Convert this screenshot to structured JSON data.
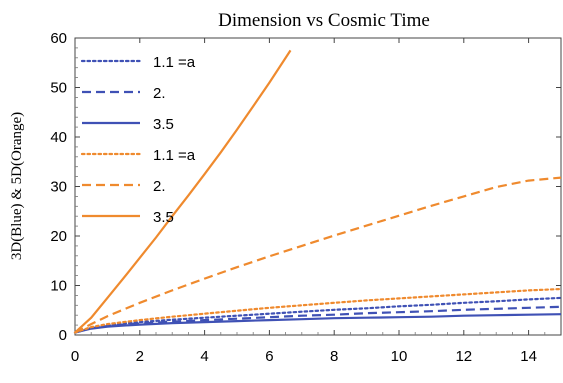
{
  "chart_data": {
    "type": "line",
    "title": "Dimension vs Cosmic Time",
    "xlabel": "",
    "ylabel": "3D(Blue) & 5D(Orange)",
    "xlim": [
      0,
      15
    ],
    "ylim": [
      0,
      60
    ],
    "xticks": [
      "0",
      "2",
      "4",
      "6",
      "8",
      "10",
      "12",
      "14"
    ],
    "yticks": [
      "0",
      "10",
      "20",
      "30",
      "40",
      "50",
      "60"
    ],
    "grid": false,
    "legend_position": "top-left",
    "colors": {
      "blue": "#3f51b5",
      "orange": "#ef8a2e"
    },
    "series": [
      {
        "name": "1.1 =a",
        "color": "blue",
        "dash": "dotted",
        "x": [
          0,
          0.5,
          1,
          2,
          3,
          4,
          5,
          6,
          7,
          8,
          9,
          10,
          11,
          12,
          13,
          14,
          15
        ],
        "y": [
          0.5,
          1.5,
          2.0,
          2.6,
          3.1,
          3.5,
          3.9,
          4.3,
          4.7,
          5.1,
          5.4,
          5.8,
          6.1,
          6.5,
          6.8,
          7.2,
          7.5
        ]
      },
      {
        "name": "2.",
        "color": "blue",
        "dash": "dashed",
        "x": [
          0,
          0.5,
          1,
          2,
          3,
          4,
          5,
          6,
          7,
          8,
          9,
          10,
          11,
          12,
          13,
          14,
          15
        ],
        "y": [
          0.5,
          1.4,
          1.8,
          2.3,
          2.7,
          3.0,
          3.3,
          3.6,
          3.9,
          4.1,
          4.4,
          4.6,
          4.8,
          5.1,
          5.3,
          5.5,
          5.7
        ]
      },
      {
        "name": "3.5",
        "color": "blue",
        "dash": "solid",
        "x": [
          0,
          0.5,
          1,
          2,
          3,
          4,
          5,
          6,
          7,
          8,
          9,
          10,
          11,
          12,
          13,
          14,
          15
        ],
        "y": [
          0.5,
          1.3,
          1.7,
          2.1,
          2.4,
          2.6,
          2.8,
          3.0,
          3.2,
          3.4,
          3.5,
          3.6,
          3.7,
          3.9,
          4.0,
          4.1,
          4.2
        ]
      },
      {
        "name": "1.1 =a",
        "color": "orange",
        "dash": "dotted",
        "x": [
          0,
          0.5,
          1,
          2,
          3,
          4,
          5,
          6,
          7,
          8,
          9,
          10,
          11,
          12,
          13,
          14,
          15
        ],
        "y": [
          0.5,
          1.6,
          2.2,
          3.0,
          3.7,
          4.3,
          4.9,
          5.5,
          6.0,
          6.5,
          7.0,
          7.4,
          7.8,
          8.2,
          8.6,
          9.0,
          9.3
        ]
      },
      {
        "name": "2.",
        "color": "orange",
        "dash": "dashed",
        "x": [
          0,
          0.5,
          1,
          2,
          3,
          4,
          5,
          6,
          7,
          8,
          9,
          10,
          11,
          12,
          13,
          14,
          15
        ],
        "y": [
          0.5,
          2.2,
          3.8,
          6.5,
          9.0,
          11.4,
          13.7,
          15.9,
          18.0,
          20.1,
          22.1,
          24.1,
          26.1,
          28.0,
          29.9,
          31.2,
          31.8
        ]
      },
      {
        "name": "3.5",
        "color": "orange",
        "dash": "solid",
        "x": [
          0,
          0.5,
          1,
          1.5,
          2,
          2.5,
          3,
          3.5,
          4,
          4.5,
          5,
          5.5,
          6,
          6.65
        ],
        "y": [
          0.5,
          3.5,
          7.5,
          11.5,
          15.6,
          19.7,
          24.0,
          28.2,
          32.5,
          36.9,
          41.5,
          46.2,
          51.0,
          57.5
        ]
      }
    ]
  }
}
